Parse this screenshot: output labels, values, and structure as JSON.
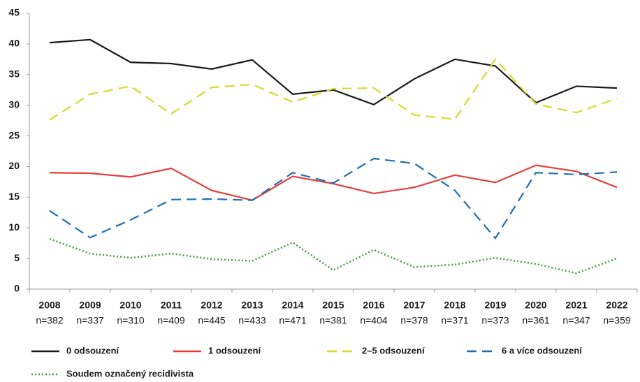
{
  "chart_data": {
    "type": "line",
    "categories": [
      "2008",
      "2009",
      "2010",
      "2011",
      "2012",
      "2013",
      "2014",
      "2015",
      "2016",
      "2017",
      "2018",
      "2019",
      "2020",
      "2021",
      "2022"
    ],
    "category_sublabels": [
      "n=382",
      "n=337",
      "n=310",
      "n=409",
      "n=445",
      "n=433",
      "n=471",
      "n=381",
      "n=404",
      "n=378",
      "n=371",
      "n=373",
      "n=361",
      "n=347",
      "n=359"
    ],
    "series": [
      {
        "name": "0 odsouzení",
        "color": "#1a1a1a",
        "style": "solid",
        "values": [
          40.2,
          40.7,
          37.0,
          36.8,
          35.9,
          37.4,
          31.8,
          32.5,
          30.1,
          34.3,
          37.5,
          36.4,
          30.4,
          33.1,
          32.8
        ]
      },
      {
        "name": "1 odsouzení",
        "color": "#e3403a",
        "style": "solid",
        "values": [
          19.0,
          18.9,
          18.3,
          19.7,
          16.1,
          14.5,
          18.4,
          17.2,
          15.6,
          16.6,
          18.6,
          17.4,
          20.2,
          19.2,
          16.6
        ]
      },
      {
        "name": "2–5 odsouzení",
        "color": "#d4dc2a",
        "style": "dashed",
        "values": [
          27.6,
          31.8,
          33.1,
          28.6,
          32.9,
          33.4,
          30.5,
          32.7,
          32.8,
          28.4,
          27.7,
          37.5,
          30.2,
          28.8,
          31.1
        ]
      },
      {
        "name": "6 a více odsouzení",
        "color": "#1f6fb0",
        "style": "dashed",
        "values": [
          12.8,
          8.4,
          11.3,
          14.6,
          14.7,
          14.5,
          19.0,
          17.3,
          21.3,
          20.5,
          16.1,
          8.3,
          19.0,
          18.7,
          19.1
        ]
      },
      {
        "name": "Soudem označený recidivista",
        "color": "#3aa13a",
        "style": "dotted",
        "values": [
          8.2,
          5.8,
          5.1,
          5.8,
          4.9,
          4.6,
          7.6,
          3.1,
          6.4,
          3.6,
          4.0,
          5.1,
          4.1,
          2.6,
          5.0
        ]
      }
    ],
    "ylim": [
      0,
      45
    ],
    "yticks": [
      0,
      5,
      10,
      15,
      20,
      25,
      30,
      35,
      40,
      45
    ],
    "grid": false
  }
}
